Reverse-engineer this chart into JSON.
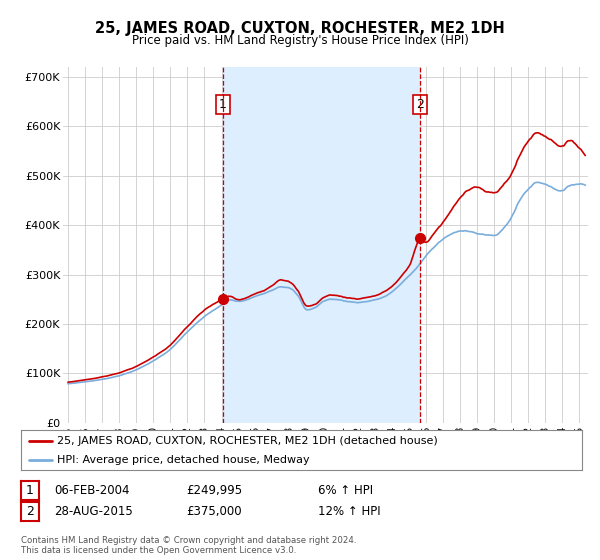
{
  "title": "25, JAMES ROAD, CUXTON, ROCHESTER, ME2 1DH",
  "subtitle": "Price paid vs. HM Land Registry's House Price Index (HPI)",
  "legend_label_red": "25, JAMES ROAD, CUXTON, ROCHESTER, ME2 1DH (detached house)",
  "legend_label_blue": "HPI: Average price, detached house, Medway",
  "annotation1_label": "1",
  "annotation1_date": "06-FEB-2004",
  "annotation1_price": "£249,995",
  "annotation1_hpi": "6% ↑ HPI",
  "annotation2_label": "2",
  "annotation2_date": "28-AUG-2015",
  "annotation2_price": "£375,000",
  "annotation2_hpi": "12% ↑ HPI",
  "footnote": "Contains HM Land Registry data © Crown copyright and database right 2024.\nThis data is licensed under the Open Government Licence v3.0.",
  "red_color": "#cc0000",
  "blue_color": "#7aaddb",
  "shade_color": "#ddeeff",
  "vline_color": "#cc0000",
  "background_color": "#ffffff",
  "grid_color": "#cccccc",
  "ylim": [
    0,
    720000
  ],
  "yticks": [
    0,
    100000,
    200000,
    300000,
    400000,
    500000,
    600000,
    700000
  ],
  "ytick_labels": [
    "£0",
    "£100K",
    "£200K",
    "£300K",
    "£400K",
    "£500K",
    "£600K",
    "£700K"
  ],
  "sale1_x": 2004.083,
  "sale1_y": 249995,
  "sale2_x": 2015.667,
  "sale2_y": 375000,
  "xlim_left": 1994.7,
  "xlim_right": 2025.5
}
